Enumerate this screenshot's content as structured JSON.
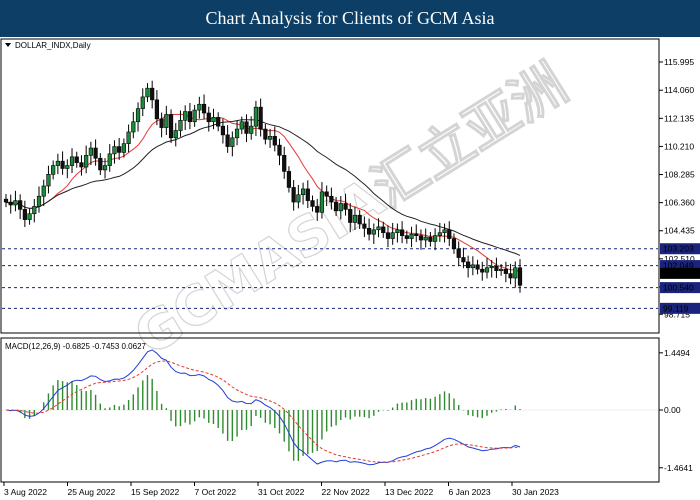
{
  "banner_title": "Chart Analysis for Clients of GCM Asia",
  "symbol_label": "DOLLAR_INDX,Daily",
  "macd_label": "MACD(12,26,9) -0.6825 -0.7453 0.0627",
  "watermark_text": "GCMASIA汇立亚洲",
  "chart_data": {
    "type": "candlestick",
    "title": "DOLLAR_INDX,Daily",
    "price_axis": {
      "ticks": [
        115.995,
        114.06,
        112.135,
        110.21,
        108.285,
        106.36,
        104.435,
        102.51,
        100.585,
        98.715
      ],
      "ylim": [
        97.5,
        117.5
      ]
    },
    "x_axis": {
      "tick_labels": [
        "3 Aug 2022",
        "25 Aug 2022",
        "15 Sep 2022",
        "7 Oct 2022",
        "31 Oct 2022",
        "22 Nov 2022",
        "13 Dec 2022",
        "6 Jan 2023",
        "30 Jan 2023"
      ]
    },
    "horizontal_levels": [
      {
        "value": 103.203,
        "label": "103.203",
        "color": "#1a237e"
      },
      {
        "value": 102.049,
        "label": "102.049",
        "color": "#1a237e"
      },
      {
        "value": 101.515,
        "label": "101.515",
        "color": "#000000"
      },
      {
        "value": 100.54,
        "label": "100.540",
        "color": "#1a237e"
      },
      {
        "value": 99.119,
        "label": "99.119",
        "color": "#1a237e"
      }
    ],
    "close_prices": [
      106.4,
      106.2,
      106.5,
      105.9,
      105.2,
      105.6,
      106.1,
      106.8,
      107.5,
      108.3,
      108.9,
      109.2,
      108.7,
      108.9,
      109.5,
      109.1,
      108.8,
      109.6,
      110.1,
      109.4,
      108.6,
      108.9,
      109.7,
      110.2,
      109.8,
      110.4,
      111.2,
      111.9,
      112.8,
      113.6,
      114.2,
      113.4,
      112.1,
      111.5,
      112.4,
      110.8,
      111.3,
      112.0,
      112.6,
      111.9,
      112.7,
      113.1,
      112.5,
      111.9,
      112.2,
      111.6,
      111.0,
      110.2,
      110.8,
      111.4,
      111.9,
      111.1,
      111.6,
      112.9,
      111.4,
      110.7,
      110.9,
      110.3,
      109.6,
      108.5,
      107.4,
      106.4,
      106.9,
      107.3,
      106.5,
      106.1,
      105.7,
      107.1,
      106.8,
      106.4,
      105.8,
      106.3,
      105.9,
      105.0,
      105.5,
      104.9,
      104.6,
      104.2,
      104.5,
      104.7,
      104.3,
      103.9,
      104.3,
      104.5,
      104.1,
      103.9,
      104.2,
      104.1,
      103.8,
      104.0,
      103.7,
      104.1,
      104.3,
      104.5,
      103.9,
      103.2,
      102.6,
      102.3,
      101.9,
      102.1,
      101.8,
      101.6,
      101.9,
      102.0,
      101.7,
      101.8,
      101.5,
      101.2,
      101.9,
      100.7
    ]
  },
  "macd_axis": {
    "ticks": [
      1.4494,
      0.0,
      -1.4641
    ],
    "ylim": [
      -1.8,
      1.8
    ]
  }
}
